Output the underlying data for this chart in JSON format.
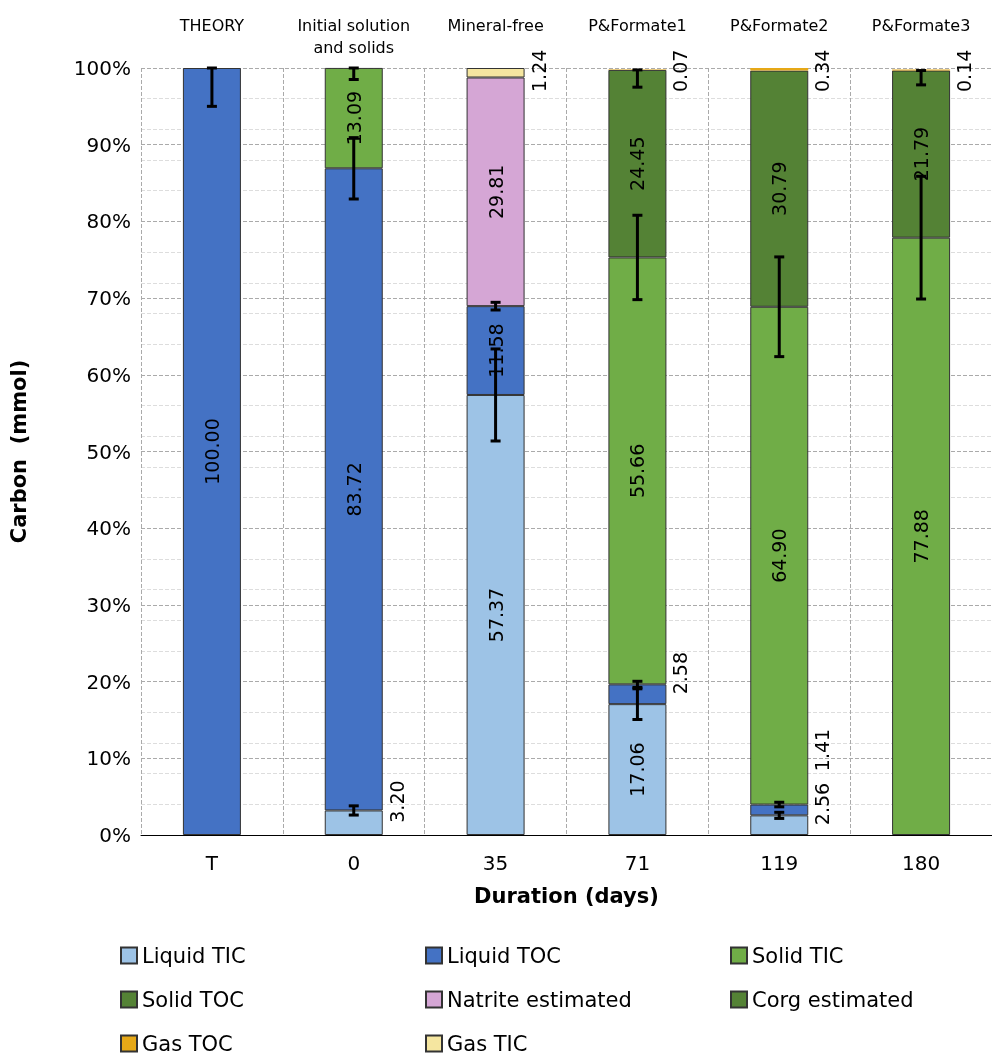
{
  "chart_data": {
    "type": "bar",
    "stacked": true,
    "xlabel": "Duration (days)",
    "ylabel": "Carbon  (mmol)",
    "categories": [
      "T",
      "0",
      "35",
      "71",
      "119",
      "180"
    ],
    "ylim": [
      0,
      100
    ],
    "yticks": [
      {
        "value": 0,
        "label": "0%"
      },
      {
        "value": 10,
        "label": "10%"
      },
      {
        "value": 20,
        "label": "20%"
      },
      {
        "value": 30,
        "label": "30%"
      },
      {
        "value": 40,
        "label": "40%"
      },
      {
        "value": 50,
        "label": "50%"
      },
      {
        "value": 60,
        "label": "60%"
      },
      {
        "value": 70,
        "label": "70%"
      },
      {
        "value": 80,
        "label": "80%"
      },
      {
        "value": 90,
        "label": "90%"
      },
      {
        "value": 100,
        "label": "100%"
      }
    ],
    "grid": true,
    "legend": "bottom",
    "annotations": [
      "THEORY",
      "Initial solution\nand solids",
      "Mineral-free",
      "P&Formate1",
      "P&Formate2",
      "P&Formate3"
    ],
    "series": [
      {
        "name": "Liquid TIC",
        "color": "#9dc3e6",
        "values": [
          null,
          3.2,
          57.37,
          17.06,
          2.56,
          null
        ],
        "value_labels": [
          null,
          "3.20",
          "57.37",
          "17.06",
          "2.56",
          null
        ],
        "errors": [
          null,
          0.6,
          6,
          2,
          0.4,
          null
        ]
      },
      {
        "name": "Liquid TOC",
        "color": "#4472c4",
        "values": [
          100.0,
          83.72,
          11.58,
          2.58,
          1.41,
          null
        ],
        "value_labels": [
          "100.00",
          "83.72",
          "11.58",
          "2.58",
          "1.41",
          null
        ],
        "errors": [
          [
            95,
            100
          ],
          4,
          0.5,
          0.4,
          0.3,
          null
        ]
      },
      {
        "name": "Solid TIC",
        "color": "#70ad47",
        "values": [
          null,
          13.09,
          null,
          55.66,
          64.9,
          77.88
        ],
        "value_labels": [
          null,
          "13.09",
          null,
          "55.66",
          "64.90",
          "77.88"
        ],
        "errors": [
          null,
          [
            98.5,
            100
          ],
          null,
          5.5,
          6.5,
          8
        ]
      },
      {
        "name": "Solid TOC",
        "color": "#548235",
        "values": [
          null,
          null,
          null,
          24.45,
          null,
          21.79
        ],
        "value_labels": [
          null,
          null,
          null,
          "24.45",
          null,
          "21.79"
        ],
        "errors": [
          null,
          null,
          null,
          [
            97.5,
            99.75
          ],
          null,
          [
            97.8,
            99.67
          ]
        ]
      },
      {
        "name": "Natrite estimated",
        "color": "#d5a6d5",
        "values": [
          null,
          null,
          29.81,
          null,
          null,
          null
        ],
        "value_labels": [
          null,
          null,
          "29.81",
          null,
          null,
          null
        ]
      },
      {
        "name": "Corg estimated",
        "color": "#548235",
        "values": [
          null,
          null,
          null,
          null,
          30.79,
          null
        ],
        "value_labels": [
          null,
          null,
          null,
          null,
          "30.79",
          null
        ]
      },
      {
        "name": "Gas TOC",
        "color": "#e6a817",
        "values": [
          null,
          null,
          null,
          0.07,
          0.34,
          0.14
        ],
        "value_labels": [
          null,
          null,
          null,
          "0.07",
          "0.34",
          "0.14"
        ]
      },
      {
        "name": "Gas TIC",
        "color": "#f5e6a0",
        "values": [
          null,
          null,
          1.24,
          null,
          null,
          null
        ],
        "value_labels": [
          null,
          null,
          "1.24",
          null,
          null,
          null
        ]
      }
    ]
  }
}
